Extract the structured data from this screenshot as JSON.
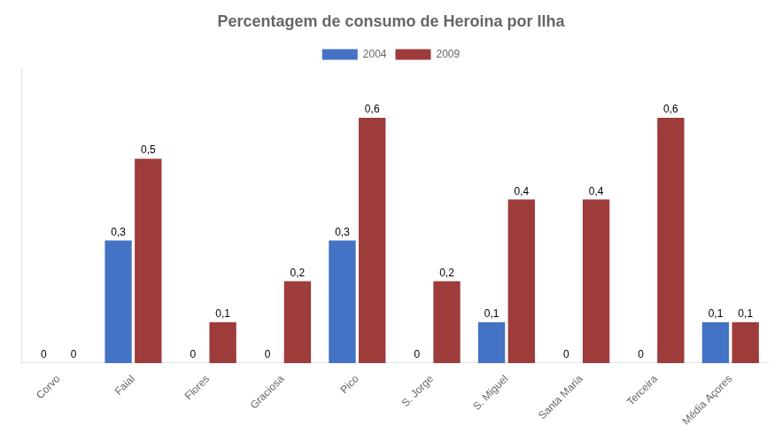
{
  "chart_data": {
    "type": "bar",
    "title": "Percentagem de consumo de Heroina por Ilha",
    "categories": [
      "Corvo",
      "Faial",
      "Flores",
      "Graciosa",
      "Pico",
      "S. Jorge",
      "S. Miguel",
      "Santa Maria",
      "Terceira",
      "Média Açores"
    ],
    "series": [
      {
        "name": "2004",
        "color": "#4472C4",
        "values": [
          0,
          0.3,
          0,
          0,
          0.3,
          0,
          0.1,
          0,
          0,
          0.1
        ],
        "value_labels": [
          "0",
          "0,3",
          "0",
          "0",
          "0,3",
          "0",
          "0,1",
          "0",
          "0",
          "0,1"
        ]
      },
      {
        "name": "2009",
        "color": "#9E3B3B",
        "values": [
          0,
          0.5,
          0.1,
          0.2,
          0.6,
          0.2,
          0.4,
          0.4,
          0.6,
          0.1
        ],
        "value_labels": [
          "0",
          "0,5",
          "0,1",
          "0,2",
          "0,6",
          "0,2",
          "0,4",
          "0,4",
          "0,6",
          "0,1"
        ]
      }
    ],
    "ylim": [
      0,
      0.72
    ],
    "grid": false,
    "legend": "top",
    "data_labels": true,
    "tick_labels": "x"
  }
}
